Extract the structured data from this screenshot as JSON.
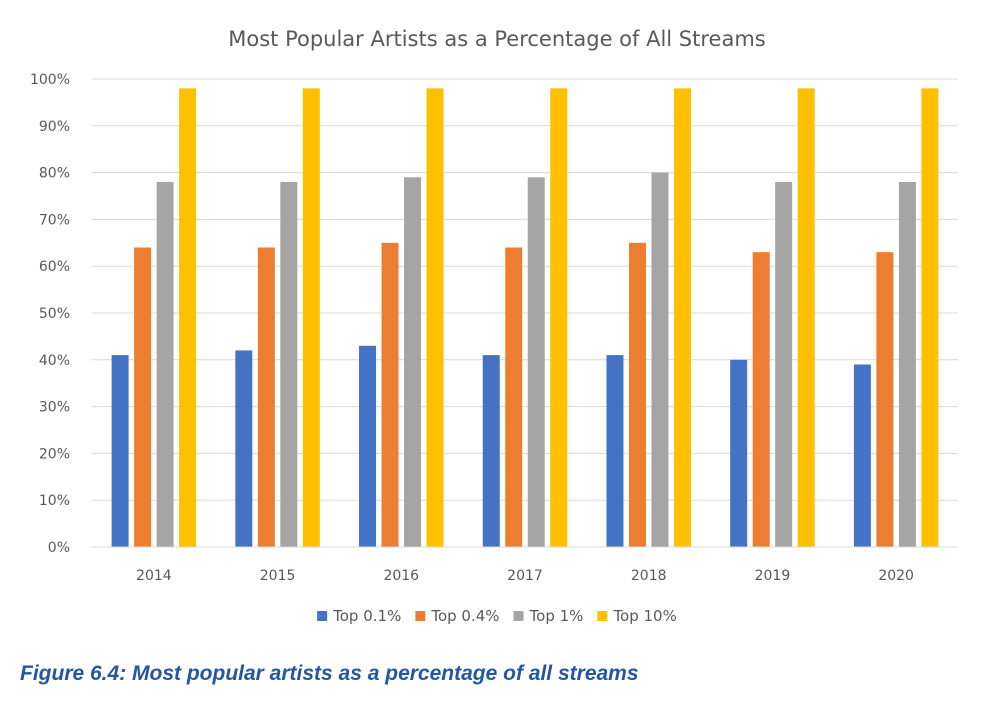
{
  "chart_data": {
    "type": "bar",
    "title": "Most Popular Artists as a Percentage of All Streams",
    "xlabel": "",
    "ylabel": "",
    "categories": [
      "2014",
      "2015",
      "2016",
      "2017",
      "2018",
      "2019",
      "2020"
    ],
    "series": [
      {
        "name": "Top 0.1%",
        "color": "#4472c4",
        "values": [
          41,
          42,
          43,
          41,
          41,
          40,
          39
        ]
      },
      {
        "name": "Top 0.4%",
        "color": "#ed7d31",
        "values": [
          64,
          64,
          65,
          64,
          65,
          63,
          63
        ]
      },
      {
        "name": "Top 1%",
        "color": "#a5a5a5",
        "values": [
          78,
          78,
          79,
          79,
          80,
          78,
          78
        ]
      },
      {
        "name": "Top 10%",
        "color": "#ffc000",
        "values": [
          98,
          98,
          98,
          98,
          98,
          98,
          98
        ]
      }
    ],
    "ylim": [
      0,
      100
    ],
    "yticks": [
      "0%",
      "10%",
      "20%",
      "30%",
      "40%",
      "50%",
      "60%",
      "70%",
      "80%",
      "90%",
      "100%"
    ],
    "grid": true,
    "legend_position": "bottom-center"
  },
  "caption": "Figure 6.4: Most popular artists as a percentage of all streams"
}
